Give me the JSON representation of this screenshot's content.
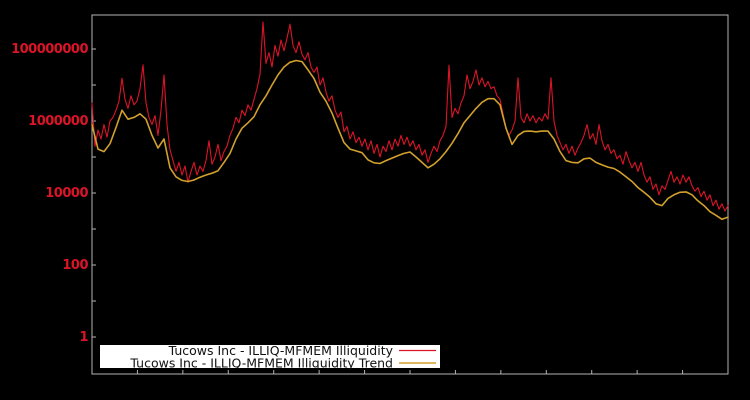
{
  "window": {
    "background": "#000000"
  },
  "axis": {
    "frame_color": "#b3b3b3",
    "tick_color": "#b3b3b3",
    "label_color": "#dc1428",
    "y_tick_labels": [
      "100000000",
      "1000000",
      "10000",
      "100",
      "1"
    ]
  },
  "legend": {
    "background": "#ffffff",
    "items": [
      {
        "label": "Tucows Inc - ILLIQ-MFMEM Illiquidity",
        "color": "#dc1428"
      },
      {
        "label": "Tucows Inc - ILLIQ-MFMEM Illiquidity Trend",
        "color": "#d2a02c"
      }
    ]
  },
  "chart_data": {
    "type": "line",
    "title": "",
    "xlabel": "",
    "ylabel": "",
    "x_axis": {
      "tick_labels_visible": false
    },
    "y_axis": {
      "scale": "log10",
      "tick_values": [
        1,
        100,
        10000,
        1000000,
        100000000
      ],
      "tick_labels": [
        "1",
        "100",
        "10000",
        "1000000",
        "100000000"
      ],
      "range_log10": [
        -1.03,
        8.94
      ]
    },
    "grid": false,
    "legend_position": "bottom-center",
    "value_encoding": "values_log10 arrays hold log10 of the plotted illiquidity values; points are evenly spaced over the full x extent (no x tick labels are shown in the chart)",
    "series": [
      {
        "name": "Tucows Inc - ILLIQ-MFMEM Illiquidity",
        "color": "#dc1428",
        "style": "noisy line",
        "values_log10": [
          6.5,
          5.3,
          5.75,
          5.5,
          5.9,
          5.55,
          6.0,
          6.1,
          6.3,
          6.55,
          7.19,
          6.6,
          6.35,
          6.7,
          6.45,
          6.55,
          6.9,
          7.56,
          6.5,
          6.1,
          5.9,
          6.15,
          5.6,
          6.3,
          7.28,
          5.9,
          5.2,
          4.9,
          4.6,
          4.85,
          4.5,
          4.75,
          4.3,
          4.6,
          4.85,
          4.5,
          4.75,
          4.6,
          4.9,
          5.45,
          4.8,
          5.0,
          5.35,
          4.9,
          5.15,
          5.3,
          5.6,
          5.8,
          6.1,
          5.95,
          6.3,
          6.15,
          6.45,
          6.3,
          6.6,
          6.9,
          7.3,
          8.75,
          7.6,
          7.9,
          7.5,
          8.1,
          7.8,
          8.25,
          7.95,
          8.3,
          8.69,
          8.1,
          7.9,
          8.2,
          7.85,
          7.7,
          7.9,
          7.5,
          7.35,
          7.5,
          7.0,
          7.2,
          6.8,
          6.55,
          6.7,
          6.3,
          6.1,
          6.25,
          5.7,
          5.85,
          5.5,
          5.7,
          5.4,
          5.55,
          5.3,
          5.5,
          5.2,
          5.45,
          5.1,
          5.35,
          5.0,
          5.3,
          5.15,
          5.45,
          5.2,
          5.5,
          5.3,
          5.6,
          5.35,
          5.55,
          5.3,
          5.45,
          5.2,
          5.35,
          5.05,
          5.2,
          4.85,
          5.1,
          5.3,
          5.15,
          5.45,
          5.6,
          5.85,
          7.55,
          6.1,
          6.35,
          6.2,
          6.5,
          6.7,
          7.28,
          6.9,
          7.1,
          7.42,
          7.0,
          7.2,
          6.95,
          7.1,
          6.9,
          6.95,
          6.7,
          6.6,
          6.2,
          5.8,
          5.6,
          5.75,
          6.0,
          7.2,
          6.1,
          5.95,
          6.2,
          6.0,
          6.15,
          5.95,
          6.1,
          6.0,
          6.2,
          6.05,
          7.2,
          6.0,
          5.6,
          5.4,
          5.2,
          5.35,
          5.1,
          5.3,
          5.05,
          5.25,
          5.4,
          5.6,
          5.9,
          5.5,
          5.65,
          5.35,
          5.9,
          5.45,
          5.2,
          5.35,
          5.1,
          5.2,
          4.95,
          5.05,
          4.8,
          5.15,
          4.9,
          4.7,
          4.85,
          4.6,
          4.85,
          4.5,
          4.3,
          4.45,
          4.1,
          4.25,
          3.95,
          4.2,
          4.1,
          4.35,
          4.6,
          4.3,
          4.45,
          4.25,
          4.5,
          4.3,
          4.45,
          4.2,
          4.05,
          4.15,
          3.9,
          4.05,
          3.8,
          3.95,
          3.65,
          3.8,
          3.55,
          3.7,
          3.5,
          3.65
        ]
      },
      {
        "name": "Tucows Inc - ILLIQ-MFMEM Illiquidity Trend",
        "color": "#d2a02c",
        "style": "smooth line",
        "values_log10": [
          5.9,
          5.22,
          5.15,
          5.37,
          5.82,
          6.3,
          6.05,
          6.1,
          6.2,
          6.05,
          5.6,
          5.25,
          5.5,
          4.7,
          4.45,
          4.35,
          4.32,
          4.36,
          4.44,
          4.5,
          4.55,
          4.62,
          4.85,
          5.1,
          5.5,
          5.8,
          5.95,
          6.12,
          6.45,
          6.7,
          7.0,
          7.28,
          7.5,
          7.63,
          7.68,
          7.65,
          7.42,
          7.18,
          6.8,
          6.55,
          6.22,
          5.8,
          5.4,
          5.22,
          5.17,
          5.12,
          4.92,
          4.84,
          4.82,
          4.9,
          4.97,
          5.04,
          5.1,
          5.14,
          5.0,
          4.85,
          4.7,
          4.8,
          4.95,
          5.15,
          5.38,
          5.65,
          5.95,
          6.15,
          6.35,
          6.52,
          6.62,
          6.62,
          6.45,
          5.8,
          5.35,
          5.6,
          5.71,
          5.72,
          5.7,
          5.72,
          5.72,
          5.5,
          5.15,
          4.9,
          4.85,
          4.84,
          4.95,
          4.97,
          4.85,
          4.78,
          4.72,
          4.68,
          4.58,
          4.45,
          4.32,
          4.15,
          4.02,
          3.88,
          3.7,
          3.65,
          3.85,
          3.95,
          4.02,
          4.03,
          3.95,
          3.78,
          3.65,
          3.48,
          3.38,
          3.27,
          3.33
        ]
      }
    ]
  }
}
